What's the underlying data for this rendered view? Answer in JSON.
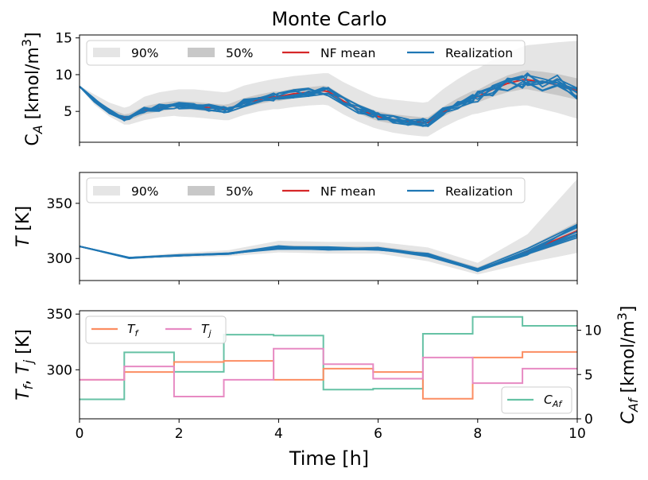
{
  "chart_data": [
    {
      "type": "line",
      "title": "Monte Carlo",
      "xlabel": "",
      "ylabel": "C_A [kmol/m^3]",
      "xlim": [
        0,
        10
      ],
      "ylim": [
        0.8,
        15.4
      ],
      "yticks": [
        5,
        10,
        15
      ],
      "xticks": [
        0,
        2,
        4,
        6,
        8,
        10
      ],
      "legend": [
        "90%",
        "50%",
        "NF mean",
        "Realization"
      ],
      "legend_location": "top",
      "x": [
        0,
        0.3,
        0.6,
        0.9,
        1.0,
        1.3,
        1.6,
        1.9,
        2.0,
        2.3,
        2.6,
        2.9,
        3.0,
        3.3,
        3.6,
        3.9,
        4.0,
        4.3,
        4.6,
        4.9,
        5.0,
        5.3,
        5.6,
        5.9,
        6.0,
        6.3,
        6.6,
        6.9,
        7.0,
        7.3,
        7.6,
        7.9,
        8.0,
        8.3,
        8.6,
        8.9,
        9.0,
        9.3,
        9.6,
        10.0
      ],
      "mean": [
        8.4,
        6.5,
        5.0,
        4.1,
        4.2,
        5.1,
        5.5,
        5.8,
        5.8,
        5.7,
        5.5,
        5.3,
        5.4,
        6.1,
        6.6,
        7.0,
        7.0,
        7.4,
        7.6,
        7.8,
        7.7,
        6.4,
        5.3,
        4.5,
        4.3,
        3.9,
        3.7,
        3.5,
        3.5,
        4.9,
        6.0,
        6.9,
        7.0,
        8.0,
        8.8,
        9.3,
        9.3,
        9.0,
        8.6,
        7.9
      ],
      "band90_low": [
        8.3,
        5.9,
        4.3,
        3.2,
        3.2,
        3.8,
        4.2,
        4.4,
        4.3,
        4.2,
        4.0,
        3.8,
        3.8,
        4.5,
        5.0,
        5.3,
        5.3,
        5.6,
        5.8,
        5.9,
        5.8,
        4.6,
        3.6,
        2.8,
        2.6,
        2.1,
        1.8,
        1.6,
        1.6,
        2.8,
        3.8,
        4.6,
        4.7,
        5.2,
        5.6,
        5.8,
        5.8,
        5.3,
        4.8,
        4.0
      ],
      "band90_high": [
        8.5,
        7.3,
        6.2,
        5.5,
        5.7,
        7.0,
        7.6,
        7.9,
        8.0,
        8.0,
        7.8,
        7.6,
        7.7,
        8.5,
        9.0,
        9.4,
        9.5,
        9.8,
        10.0,
        10.2,
        10.2,
        9.0,
        8.0,
        7.1,
        6.9,
        6.6,
        6.4,
        6.2,
        6.3,
        8.0,
        9.4,
        10.6,
        10.8,
        12.0,
        13.0,
        13.8,
        14.0,
        14.2,
        14.4,
        14.6
      ],
      "band50_low": [
        8.4,
        6.2,
        4.7,
        3.7,
        3.8,
        4.6,
        5.0,
        5.3,
        5.3,
        5.2,
        5.0,
        4.8,
        4.8,
        5.5,
        6.0,
        6.4,
        6.4,
        6.8,
        7.0,
        7.2,
        7.1,
        5.8,
        4.7,
        3.9,
        3.7,
        3.3,
        3.1,
        2.9,
        2.9,
        4.3,
        5.3,
        6.1,
        6.2,
        7.0,
        7.6,
        8.0,
        8.0,
        7.6,
        7.2,
        6.6
      ],
      "band50_high": [
        8.4,
        6.8,
        5.4,
        4.6,
        4.7,
        5.7,
        6.1,
        6.4,
        6.4,
        6.3,
        6.1,
        5.9,
        6.0,
        6.8,
        7.3,
        7.7,
        7.7,
        8.1,
        8.3,
        8.5,
        8.4,
        7.1,
        6.0,
        5.2,
        5.0,
        4.6,
        4.4,
        4.2,
        4.2,
        5.6,
        6.8,
        7.8,
        7.9,
        9.0,
        9.9,
        10.5,
        10.6,
        10.4,
        10.1,
        9.5
      ]
    },
    {
      "type": "line",
      "xlabel": "",
      "ylabel": "T [K]",
      "xlim": [
        0,
        10
      ],
      "ylim": [
        280,
        378
      ],
      "yticks": [
        300,
        350
      ],
      "xticks": [
        0,
        2,
        4,
        6,
        8,
        10
      ],
      "legend": [
        "90%",
        "50%",
        "NF mean",
        "Realization"
      ],
      "legend_location": "top",
      "x": [
        0,
        1,
        2,
        3,
        4,
        5,
        6,
        7,
        8,
        9,
        10
      ],
      "mean": [
        311,
        300.5,
        303,
        304.5,
        310,
        309,
        309,
        303,
        289.5,
        306,
        325
      ],
      "band90_low": [
        311,
        299.5,
        301,
        302,
        305.5,
        304.5,
        304.5,
        297.5,
        285.5,
        296,
        305
      ],
      "band90_high": [
        311,
        301.5,
        305,
        307.5,
        316,
        315,
        315,
        310,
        296,
        322,
        372
      ],
      "band50_low": [
        311,
        300,
        302.5,
        303.5,
        308.5,
        307.5,
        307.5,
        301,
        288.5,
        303,
        318
      ],
      "band50_high": [
        311,
        301,
        304,
        305.5,
        312,
        311,
        311,
        305.5,
        292,
        310,
        333
      ]
    },
    {
      "type": "line",
      "xlabel": "Time [h]",
      "ylabel": "T_f, T_j [K]",
      "ylabel_right": "C_Af [kmol/m^3]",
      "xlim": [
        0,
        10
      ],
      "ylim": [
        256,
        353
      ],
      "ylim_right": [
        0,
        12.2
      ],
      "yticks": [
        300,
        350
      ],
      "yticks_right": [
        0,
        5,
        10
      ],
      "xticks": [
        0,
        2,
        4,
        6,
        8,
        10
      ],
      "xtick_labels": [
        "0",
        "2",
        "4",
        "6",
        "8",
        "10"
      ],
      "legend": [
        "T_f",
        "T_j"
      ],
      "legend_right": [
        "C_Af"
      ],
      "legend_location": "top-left",
      "legend_right_location": "lower-right",
      "step_edges": [
        0,
        0.9,
        1.9,
        2.9,
        3.9,
        4.9,
        5.9,
        6.9,
        7.9,
        8.9,
        10
      ],
      "Tf": [
        291,
        298,
        307,
        308,
        291,
        301,
        298,
        274,
        311,
        316
      ],
      "Tj": [
        291,
        303,
        276,
        291,
        319,
        305,
        292,
        311,
        288,
        301
      ],
      "CAf": [
        2.2,
        7.5,
        5.3,
        9.5,
        9.4,
        3.3,
        3.4,
        9.6,
        11.5,
        10.5
      ]
    }
  ],
  "colors": {
    "band90": "#e5e5e5",
    "band50": "#c8c8c8",
    "nf_mean": "#d62728",
    "realization": "#1f77b4",
    "Tf": "#fc8d62",
    "Tj": "#e78ac3",
    "CAf": "#66c2a5"
  }
}
